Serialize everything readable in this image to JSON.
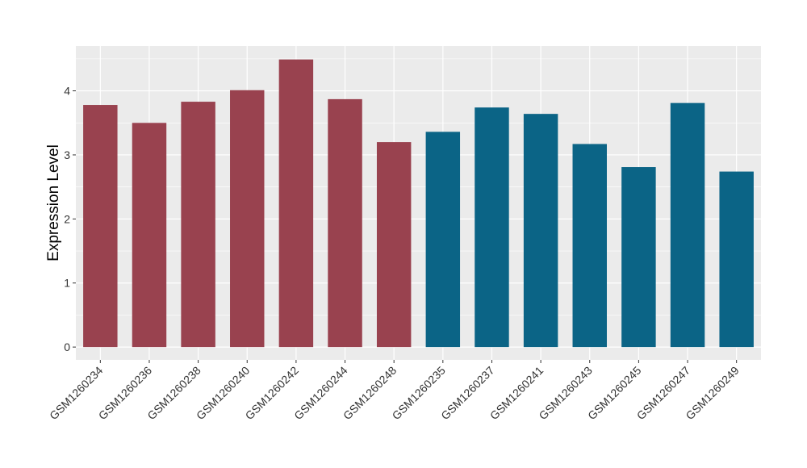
{
  "chart_data": {
    "type": "bar",
    "xlabel": "",
    "ylabel": "Expression Level",
    "ylim": [
      -0.2,
      4.7
    ],
    "yticks": [
      0,
      1,
      2,
      3,
      4
    ],
    "grid": true,
    "legend": "none",
    "panel_background": "#EBEBEB",
    "grid_color": "#FFFFFF",
    "categories": [
      "GSM1260234",
      "GSM1260236",
      "GSM1260238",
      "GSM1260240",
      "GSM1260242",
      "GSM1260244",
      "GSM1260248",
      "GSM1260235",
      "GSM1260237",
      "GSM1260241",
      "GSM1260243",
      "GSM1260245",
      "GSM1260247",
      "GSM1260249"
    ],
    "values": [
      3.78,
      3.5,
      3.83,
      4.01,
      4.49,
      3.87,
      3.2,
      3.36,
      3.74,
      3.64,
      3.17,
      2.81,
      3.81,
      2.74
    ],
    "bar_colors": [
      "#99424F",
      "#99424F",
      "#99424F",
      "#99424F",
      "#99424F",
      "#99424F",
      "#99424F",
      "#0B6486",
      "#0B6486",
      "#0B6486",
      "#0B6486",
      "#0B6486",
      "#0B6486",
      "#0B6486"
    ]
  }
}
